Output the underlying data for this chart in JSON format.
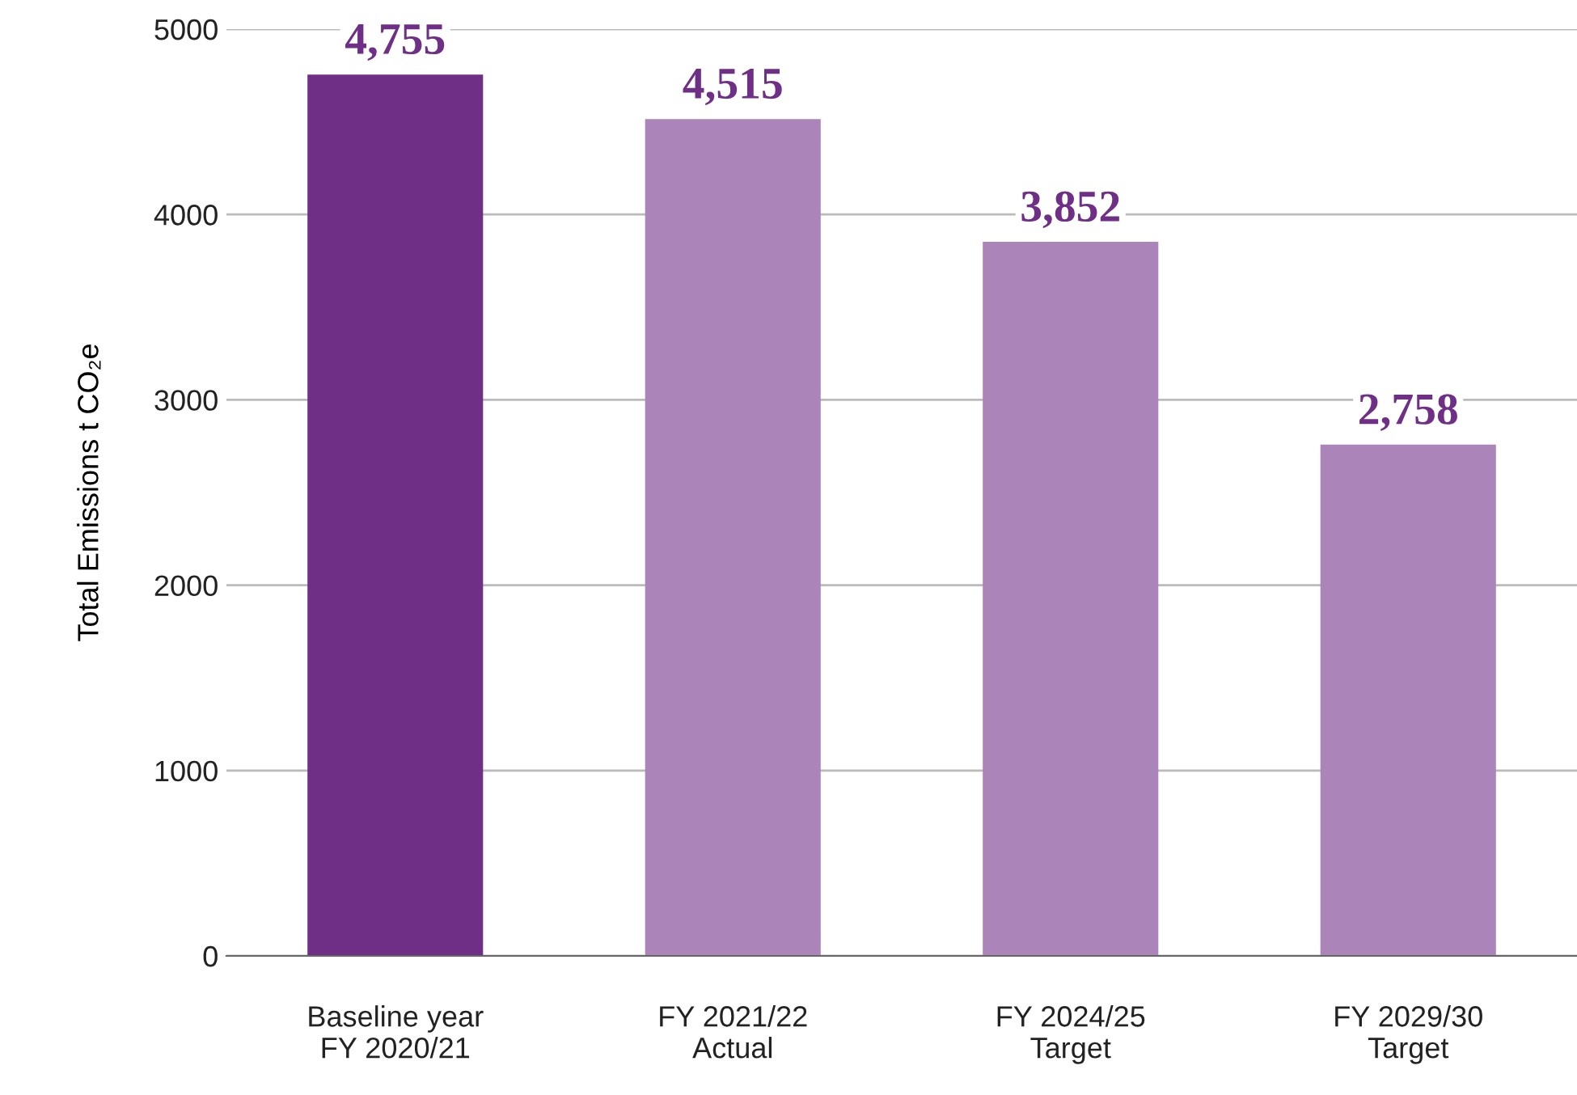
{
  "chart_data": {
    "type": "bar",
    "ylabel": "Total Emissions t CO₂e",
    "categories": [
      "Baseline year\nFY 2020/21",
      "FY 2021/22\nActual",
      "FY 2024/25\nTarget",
      "FY 2029/30\nTarget"
    ],
    "values": [
      4755,
      4515,
      3852,
      2758
    ],
    "colors": [
      "#6f2f87",
      "#ab84b9",
      "#ab84b9",
      "#ab84b9"
    ],
    "value_labels": [
      "4,755",
      "4,515",
      "3,852",
      "2,758"
    ],
    "ylim": [
      0,
      5000
    ],
    "yticks": [
      0,
      1000,
      2000,
      3000,
      4000,
      5000
    ],
    "grid": "y",
    "legend": false
  }
}
